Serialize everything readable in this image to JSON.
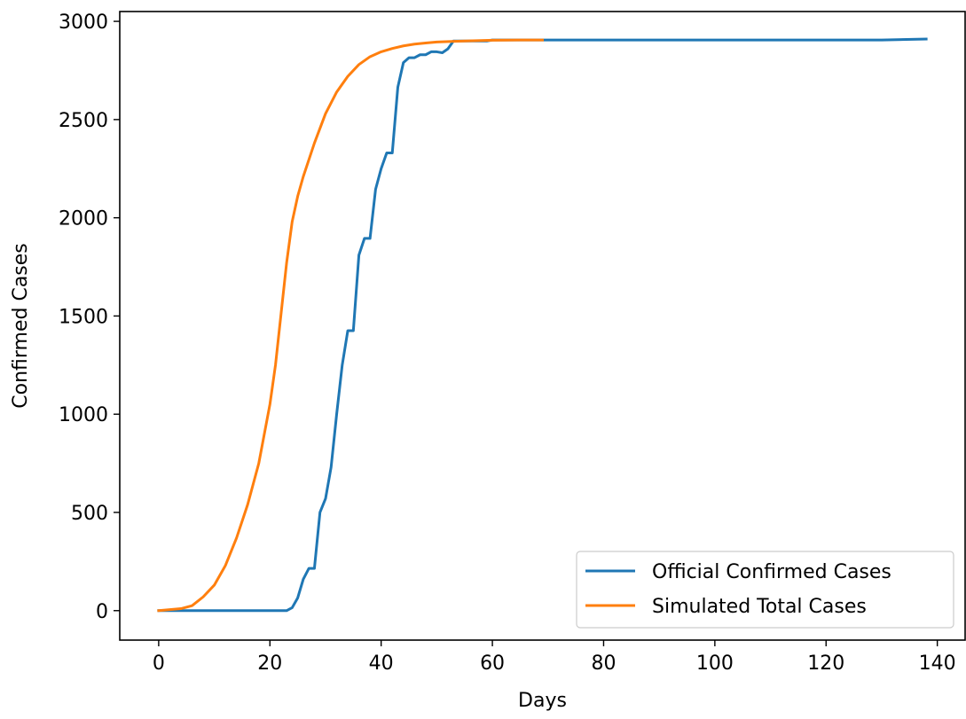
{
  "chart_data": {
    "type": "line",
    "title": "",
    "xlabel": "Days",
    "ylabel": "Confirmed Cases",
    "xlim": [
      -7,
      145
    ],
    "ylim": [
      -150,
      3050
    ],
    "xticks": [
      0,
      20,
      40,
      60,
      80,
      100,
      120,
      140
    ],
    "yticks": [
      0,
      500,
      1000,
      1500,
      2000,
      2500,
      3000
    ],
    "grid": false,
    "legend_position": "lower-right",
    "series": [
      {
        "name": "Official Confirmed Cases",
        "color": "#1f77b4",
        "x": [
          0,
          1,
          2,
          3,
          4,
          5,
          6,
          7,
          8,
          9,
          10,
          11,
          12,
          13,
          14,
          15,
          16,
          17,
          18,
          19,
          20,
          21,
          22,
          23,
          24,
          25,
          26,
          27,
          28,
          29,
          30,
          31,
          32,
          33,
          34,
          35,
          36,
          37,
          38,
          39,
          40,
          41,
          42,
          43,
          44,
          45,
          46,
          47,
          48,
          49,
          50,
          51,
          52,
          53,
          54,
          55,
          56,
          57,
          58,
          59,
          60,
          70,
          80,
          90,
          100,
          110,
          120,
          130,
          138
        ],
        "y": [
          0,
          0,
          0,
          0,
          0,
          0,
          0,
          0,
          0,
          0,
          0,
          0,
          0,
          0,
          0,
          0,
          0,
          0,
          0,
          0,
          0,
          0,
          0,
          0,
          15,
          65,
          160,
          215,
          215,
          500,
          570,
          730,
          1000,
          1250,
          1425,
          1425,
          1810,
          1895,
          1895,
          2145,
          2250,
          2330,
          2330,
          2665,
          2790,
          2815,
          2815,
          2830,
          2830,
          2845,
          2845,
          2840,
          2860,
          2900,
          2900,
          2900,
          2900,
          2900,
          2900,
          2900,
          2905,
          2905,
          2905,
          2905,
          2905,
          2905,
          2905,
          2905,
          2910
        ]
      },
      {
        "name": "Simulated Total Cases",
        "color": "#ff7f0e",
        "x": [
          0,
          2,
          4,
          6,
          8,
          10,
          12,
          14,
          16,
          18,
          20,
          21,
          22,
          23,
          24,
          25,
          26,
          28,
          30,
          32,
          34,
          36,
          38,
          40,
          42,
          44,
          46,
          48,
          50,
          55,
          60,
          65,
          69
        ],
        "y": [
          0,
          5,
          10,
          25,
          70,
          130,
          230,
          370,
          540,
          750,
          1050,
          1250,
          1510,
          1770,
          1980,
          2110,
          2210,
          2380,
          2530,
          2640,
          2720,
          2780,
          2820,
          2845,
          2862,
          2875,
          2884,
          2890,
          2895,
          2900,
          2904,
          2905,
          2905
        ]
      }
    ]
  }
}
